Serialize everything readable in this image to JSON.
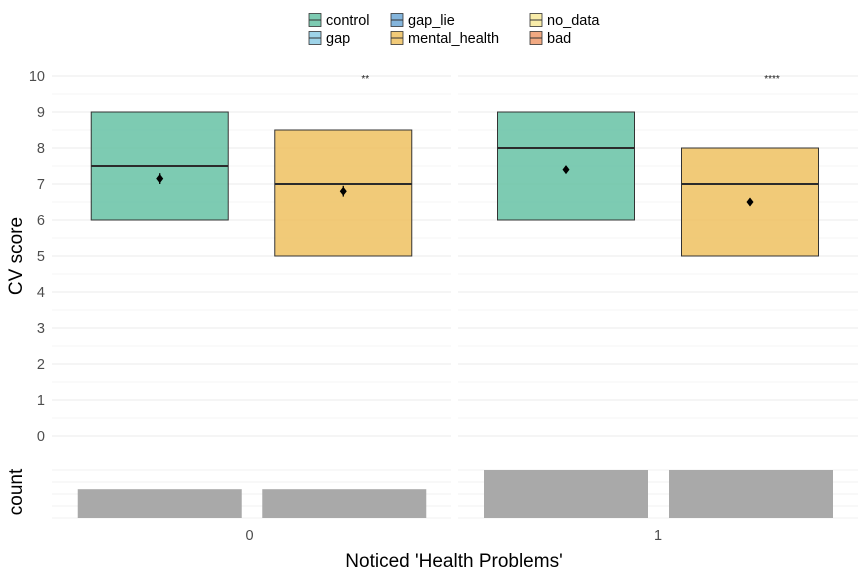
{
  "chart_data": {
    "type": "box",
    "ylabel": "CV score",
    "xlabel": "Noticed 'Health Problems'",
    "count_label": "count",
    "ylim": [
      0,
      10
    ],
    "yticks": [
      0,
      1,
      2,
      3,
      4,
      5,
      6,
      7,
      8,
      9,
      10
    ],
    "legend": {
      "placement": "top",
      "entries": [
        {
          "name": "control",
          "color": "#66C2A5"
        },
        {
          "name": "gap",
          "color": "#8DCBE4"
        },
        {
          "name": "gap_lie",
          "color": "#6FA8D6"
        },
        {
          "name": "mental_health",
          "color": "#EEC160"
        },
        {
          "name": "no_data",
          "color": "#F7E99A"
        },
        {
          "name": "bad",
          "color": "#EE9A6C"
        }
      ]
    },
    "panels": [
      {
        "x_label": "0",
        "significance": "**",
        "boxes": [
          {
            "group": "control",
            "color": "#66C2A5",
            "q1": 6,
            "median": 7.5,
            "q3": 9,
            "mean": 7.15,
            "mean_err": 0.15
          },
          {
            "group": "mental_health",
            "color": "#EEC160",
            "q1": 5,
            "median": 7,
            "q3": 8.5,
            "mean": 6.8,
            "mean_err": 0.15
          }
        ],
        "counts": [
          0.6,
          0.6
        ]
      },
      {
        "x_label": "1",
        "significance": "****",
        "boxes": [
          {
            "group": "control",
            "color": "#66C2A5",
            "q1": 6,
            "median": 8,
            "q3": 9,
            "mean": 7.4,
            "mean_err": 0.1
          },
          {
            "group": "mental_health",
            "color": "#EEC160",
            "q1": 5,
            "median": 7,
            "q3": 8,
            "mean": 6.5,
            "mean_err": 0.1
          }
        ],
        "counts": [
          1.0,
          1.0
        ]
      }
    ]
  }
}
